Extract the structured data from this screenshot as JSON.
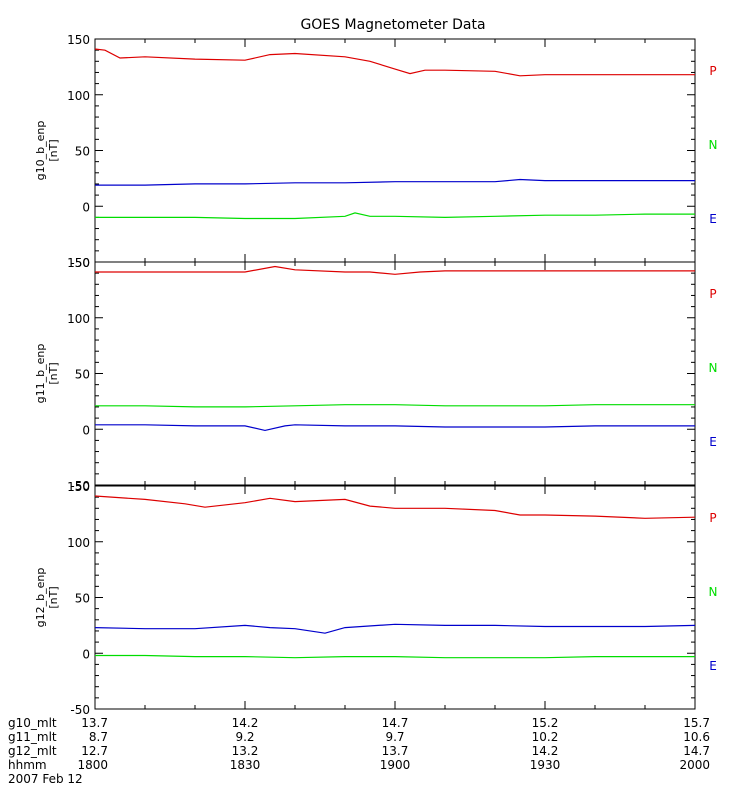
{
  "chart_data": {
    "type": "line",
    "title": "GOES Magnetometer Data",
    "date_label": "2007 Feb 12",
    "x_axis": {
      "unit": "minutes (hhmm)",
      "xlim": [
        "1800",
        "2000"
      ],
      "major_ticks": [
        "1800",
        "1830",
        "1900",
        "1930",
        "2000"
      ]
    },
    "colors": {
      "P": "#dd0000",
      "N": "#00dd00",
      "E": "#0000cc",
      "axis": "#000000"
    },
    "panels": [
      {
        "name": "g10",
        "ylabel_top": "g10_b_enp",
        "ylabel_unit": "[nT]",
        "ylim": [
          -50,
          150
        ],
        "yticks": [
          "150",
          "100",
          "50",
          "0",
          "-50"
        ],
        "legend": [
          {
            "label": "P",
            "color": "#dd0000"
          },
          {
            "label": "N",
            "color": "#00dd00"
          },
          {
            "label": "E",
            "color": "#0000cc"
          }
        ],
        "series": [
          {
            "component": "P",
            "color": "#dd0000",
            "x": [
              "1800",
              "1802",
              "1805",
              "1810",
              "1820",
              "1830",
              "1835",
              "1840",
              "1850",
              "1855",
              "1900",
              "1903",
              "1906",
              "1910",
              "1920",
              "1925",
              "1930",
              "1940",
              "1950",
              "2000"
            ],
            "y": [
              141,
              140,
              133,
              134,
              132,
              131,
              136,
              137,
              134,
              130,
              123,
              119,
              122,
              122,
              121,
              117,
              118,
              118,
              118,
              118
            ]
          },
          {
            "component": "E",
            "color": "#0000cc",
            "x": [
              "1800",
              "1810",
              "1820",
              "1830",
              "1840",
              "1850",
              "1900",
              "1910",
              "1920",
              "1925",
              "1930",
              "1940",
              "1950",
              "2000"
            ],
            "y": [
              19,
              19,
              20,
              20,
              21,
              21,
              22,
              22,
              22,
              24,
              23,
              23,
              23,
              23
            ]
          },
          {
            "component": "N",
            "color": "#00dd00",
            "x": [
              "1800",
              "1810",
              "1820",
              "1830",
              "1840",
              "1850",
              "1852",
              "1855",
              "1900",
              "1910",
              "1920",
              "1930",
              "1940",
              "1950",
              "2000"
            ],
            "y": [
              -10,
              -10,
              -10,
              -11,
              -11,
              -9,
              -6,
              -9,
              -9,
              -10,
              -9,
              -8,
              -8,
              -7,
              -7
            ]
          }
        ]
      },
      {
        "name": "g11",
        "ylabel_top": "g11_b_enp",
        "ylabel_unit": "[nT]",
        "ylim": [
          -50,
          150
        ],
        "yticks": [
          "150",
          "100",
          "50",
          "0",
          "-50"
        ],
        "legend": [
          {
            "label": "P",
            "color": "#dd0000"
          },
          {
            "label": "N",
            "color": "#00dd00"
          },
          {
            "label": "E",
            "color": "#0000cc"
          }
        ],
        "series": [
          {
            "component": "P",
            "color": "#dd0000",
            "x": [
              "1800",
              "1810",
              "1820",
              "1830",
              "1836",
              "1840",
              "1850",
              "1855",
              "1900",
              "1905",
              "1910",
              "1920",
              "1930",
              "1940",
              "1950",
              "2000"
            ],
            "y": [
              141,
              141,
              141,
              141,
              146,
              143,
              141,
              141,
              139,
              141,
              142,
              142,
              142,
              142,
              142,
              142
            ]
          },
          {
            "component": "N",
            "color": "#00dd00",
            "x": [
              "1800",
              "1810",
              "1820",
              "1830",
              "1840",
              "1850",
              "1900",
              "1910",
              "1920",
              "1930",
              "1940",
              "1950",
              "2000"
            ],
            "y": [
              21,
              21,
              20,
              20,
              21,
              22,
              22,
              21,
              21,
              21,
              22,
              22,
              22
            ]
          },
          {
            "component": "E",
            "color": "#0000cc",
            "x": [
              "1800",
              "1810",
              "1820",
              "1830",
              "1834",
              "1838",
              "1840",
              "1850",
              "1900",
              "1910",
              "1920",
              "1930",
              "1940",
              "1950",
              "2000"
            ],
            "y": [
              4,
              4,
              3,
              3,
              -1,
              3,
              4,
              3,
              3,
              2,
              2,
              2,
              3,
              3,
              3
            ]
          }
        ]
      },
      {
        "name": "g12",
        "ylabel_top": "g12_b_enp",
        "ylabel_unit": "[nT]",
        "ylim": [
          -50,
          150
        ],
        "yticks": [
          "150",
          "100",
          "50",
          "0",
          "-50"
        ],
        "legend": [
          {
            "label": "P",
            "color": "#dd0000"
          },
          {
            "label": "N",
            "color": "#00dd00"
          },
          {
            "label": "E",
            "color": "#0000cc"
          }
        ],
        "series": [
          {
            "component": "P",
            "color": "#dd0000",
            "x": [
              "1800",
              "1810",
              "1818",
              "1822",
              "1830",
              "1835",
              "1840",
              "1850",
              "1855",
              "1900",
              "1910",
              "1920",
              "1925",
              "1930",
              "1940",
              "1950",
              "2000"
            ],
            "y": [
              141,
              138,
              134,
              131,
              135,
              139,
              136,
              138,
              132,
              130,
              130,
              128,
              124,
              124,
              123,
              121,
              122
            ]
          },
          {
            "component": "E",
            "color": "#0000cc",
            "x": [
              "1800",
              "1810",
              "1820",
              "1830",
              "1835",
              "1840",
              "1846",
              "1850",
              "1900",
              "1910",
              "1920",
              "1930",
              "1940",
              "1950",
              "2000"
            ],
            "y": [
              23,
              22,
              22,
              25,
              23,
              22,
              18,
              23,
              26,
              25,
              25,
              24,
              24,
              24,
              25
            ]
          },
          {
            "component": "N",
            "color": "#00dd00",
            "x": [
              "1800",
              "1810",
              "1820",
              "1830",
              "1840",
              "1850",
              "1900",
              "1910",
              "1920",
              "1930",
              "1940",
              "1950",
              "2000"
            ],
            "y": [
              -2,
              -2,
              -3,
              -3,
              -4,
              -3,
              -3,
              -4,
              -4,
              -4,
              -3,
              -3,
              -3
            ]
          }
        ]
      }
    ]
  },
  "footer": {
    "rows": [
      {
        "label": "g10_mlt",
        "values": [
          "13.7",
          "14.2",
          "14.7",
          "15.2",
          "15.7"
        ]
      },
      {
        "label": "g11_mlt",
        "values": [
          "8.7",
          "9.2",
          "9.7",
          "10.2",
          "10.6"
        ]
      },
      {
        "label": "g12_mlt",
        "values": [
          "12.7",
          "13.2",
          "13.7",
          "14.2",
          "14.7"
        ]
      },
      {
        "label": "hhmm",
        "values": [
          "1800",
          "1830",
          "1900",
          "1930",
          "2000"
        ]
      }
    ],
    "date": "2007 Feb 12"
  }
}
